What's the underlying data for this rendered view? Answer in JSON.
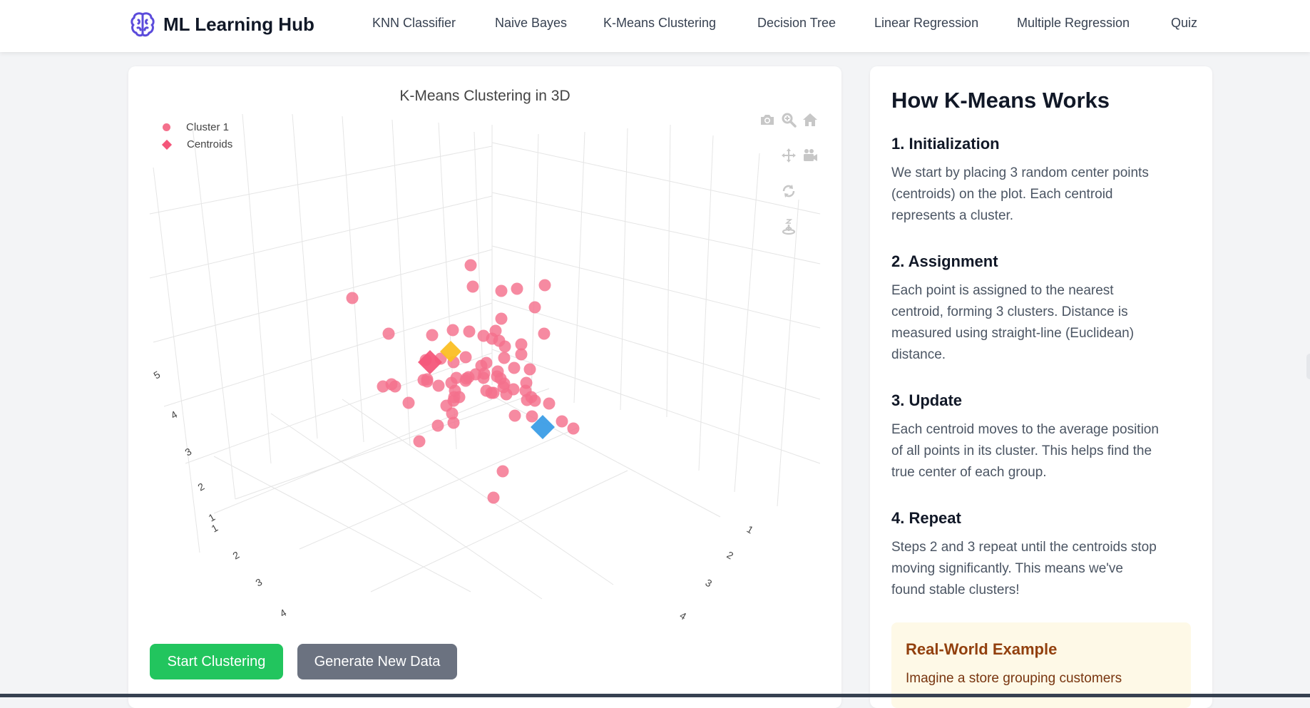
{
  "nav": {
    "brand": "ML Learning Hub",
    "items": [
      {
        "label": "KNN Classifier"
      },
      {
        "label": "Naive Bayes"
      },
      {
        "label": "K-Means Clustering"
      },
      {
        "label": "Decision Tree"
      },
      {
        "label": "Linear Regression"
      },
      {
        "label": "Multiple Regression"
      },
      {
        "label": "Quiz"
      }
    ]
  },
  "chart": {
    "title": "K-Means Clustering in 3D",
    "legend": [
      {
        "label": "Cluster 1",
        "symbol": "circle",
        "color": "#f4708c"
      },
      {
        "label": "Centroids",
        "symbol": "diamond",
        "color": "#f4567a"
      }
    ],
    "modebar": [
      "camera-icon",
      "zoom-icon",
      "home-icon",
      "pan-icon",
      "camera-video-icon",
      "orbit-rotate-icon",
      "turntable-icon"
    ],
    "left_axis_ticks": [
      "5",
      "4",
      "3",
      "2",
      "1"
    ],
    "front_left_ticks": [
      "1",
      "2",
      "3",
      "4"
    ],
    "front_right_ticks": [
      "1",
      "2",
      "3",
      "4"
    ]
  },
  "chart_data": {
    "type": "scatter",
    "title": "K-Means Clustering in 3D",
    "series": [
      {
        "name": "Cluster 1",
        "symbol": "circle",
        "color": "#f4708c",
        "point_count": 70
      },
      {
        "name": "Centroids",
        "symbol": "diamond",
        "colors": [
          "#f4567a",
          "#fbbf24",
          "#3b9de6"
        ],
        "point_count": 3
      }
    ],
    "axis_ticks": {
      "vertical": [
        "1",
        "2",
        "3",
        "4",
        "5"
      ],
      "front_left": [
        "1",
        "2",
        "3",
        "4"
      ],
      "front_right": [
        "1",
        "2",
        "3",
        "4"
      ]
    },
    "grid": true,
    "legend_position": "top-left"
  },
  "actions": {
    "start": "Start Clustering",
    "generate": "Generate New Data"
  },
  "info": {
    "heading": "How K-Means Works",
    "steps": [
      {
        "title": "1. Initialization",
        "lines": [
          "We start by placing 3 random center points",
          "(centroids) on the plot. Each centroid",
          "represents a cluster."
        ]
      },
      {
        "title": "2. Assignment",
        "lines": [
          "Each point is assigned to the nearest",
          "centroid, forming 3 clusters. Distance is",
          "measured using straight-line (Euclidean)",
          "distance."
        ]
      },
      {
        "title": "3. Update",
        "lines": [
          "Each centroid moves to the average position",
          "of all points in its cluster. This helps find the",
          "true center of each group."
        ]
      },
      {
        "title": "4. Repeat",
        "lines": [
          "Steps 2 and 3 repeat until the centroids stop",
          "moving significantly. This means we've",
          "found stable clusters!"
        ]
      }
    ],
    "example": {
      "title": "Real-World Example",
      "text": "Imagine a store grouping customers"
    }
  },
  "colors": {
    "accent_brand": "#5b4bdb",
    "start_button": "#22c55e",
    "generate_button": "#6b7280",
    "point": "#f4708c",
    "centroid_red": "#f4567a",
    "centroid_yellow": "#fbbf24",
    "centroid_blue": "#3b9de6",
    "example_bg": "#fef9e7"
  }
}
